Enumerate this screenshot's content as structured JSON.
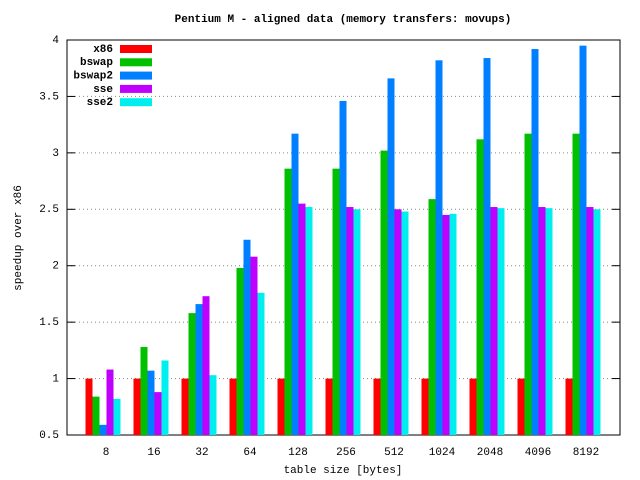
{
  "chart_data": {
    "type": "bar",
    "title": "Pentium M - aligned data (memory transfers: movups)",
    "x_label": "table size [bytes]",
    "y_label": "speedup over x86",
    "categories": [
      "8",
      "16",
      "32",
      "64",
      "128",
      "256",
      "512",
      "1024",
      "2048",
      "4096",
      "8192"
    ],
    "series": [
      {
        "name": "x86",
        "color": "#ff0000",
        "values": [
          1,
          1,
          1,
          1,
          1,
          1,
          1,
          1,
          1,
          1,
          1
        ]
      },
      {
        "name": "bswap",
        "color": "#00c000",
        "values": [
          0.84,
          1.28,
          1.58,
          1.98,
          2.86,
          2.86,
          3.02,
          2.59,
          3.12,
          3.17,
          3.17
        ]
      },
      {
        "name": "bswap2",
        "color": "#0080ff",
        "values": [
          0.59,
          1.07,
          1.66,
          2.23,
          3.17,
          3.46,
          3.66,
          3.82,
          3.84,
          3.92,
          3.95
        ]
      },
      {
        "name": "sse",
        "color": "#c000ff",
        "values": [
          1.08,
          0.88,
          1.73,
          2.08,
          2.55,
          2.52,
          2.5,
          2.45,
          2.52,
          2.52,
          2.52
        ]
      },
      {
        "name": "sse2",
        "color": "#00eeee",
        "values": [
          0.82,
          1.16,
          1.03,
          1.76,
          2.52,
          2.5,
          2.48,
          2.46,
          2.51,
          2.51,
          2.5
        ]
      }
    ],
    "ylim": [
      0.5,
      4
    ],
    "yticks": [
      0.5,
      1,
      1.5,
      2,
      2.5,
      3,
      3.5,
      4
    ],
    "grid": true,
    "legend": "top-left"
  }
}
